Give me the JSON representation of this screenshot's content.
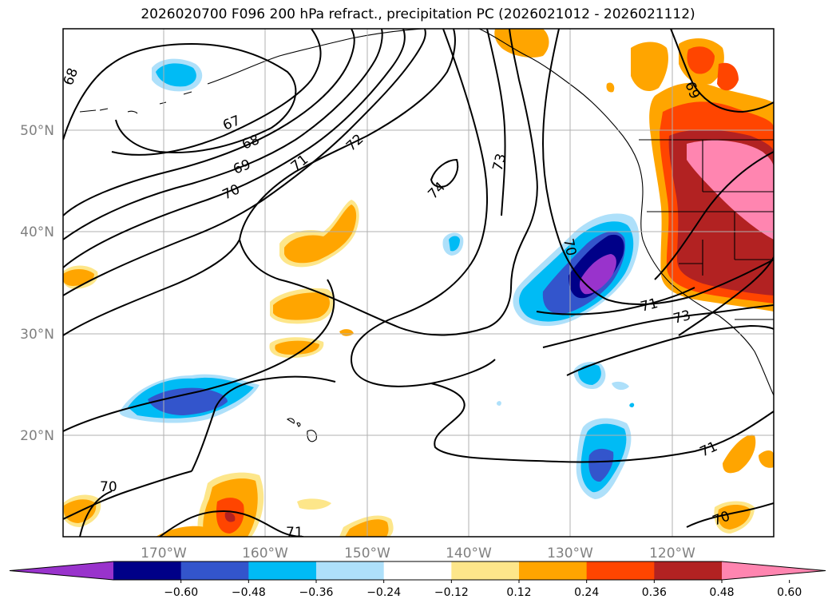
{
  "title": "2026020700 F096 200 hPa refract., precipitation PC (2026021012 - 2026021112)",
  "lat_labels": [
    "50°N",
    "40°N",
    "30°N",
    "20°N"
  ],
  "lon_labels": [
    "170°W",
    "160°W",
    "150°W",
    "140°W",
    "130°W",
    "120°W"
  ],
  "contour_labels": [
    "68",
    "67",
    "68",
    "69",
    "70",
    "71",
    "72",
    "73",
    "74",
    "70",
    "71",
    "73",
    "69",
    "71",
    "70",
    "71",
    "70"
  ],
  "colorbar": {
    "ticks": [
      "−0.60",
      "−0.48",
      "−0.36",
      "−0.24",
      "−0.12",
      "0.12",
      "0.24",
      "0.36",
      "0.48",
      "0.60"
    ],
    "colors": [
      "#9933cc",
      "#000088",
      "#3355cc",
      "#00bbf5",
      "#aee0fa",
      "#ffffff",
      "#fde68a",
      "#ffa500",
      "#ff4500",
      "#b22222",
      "#ff85b0"
    ]
  }
}
